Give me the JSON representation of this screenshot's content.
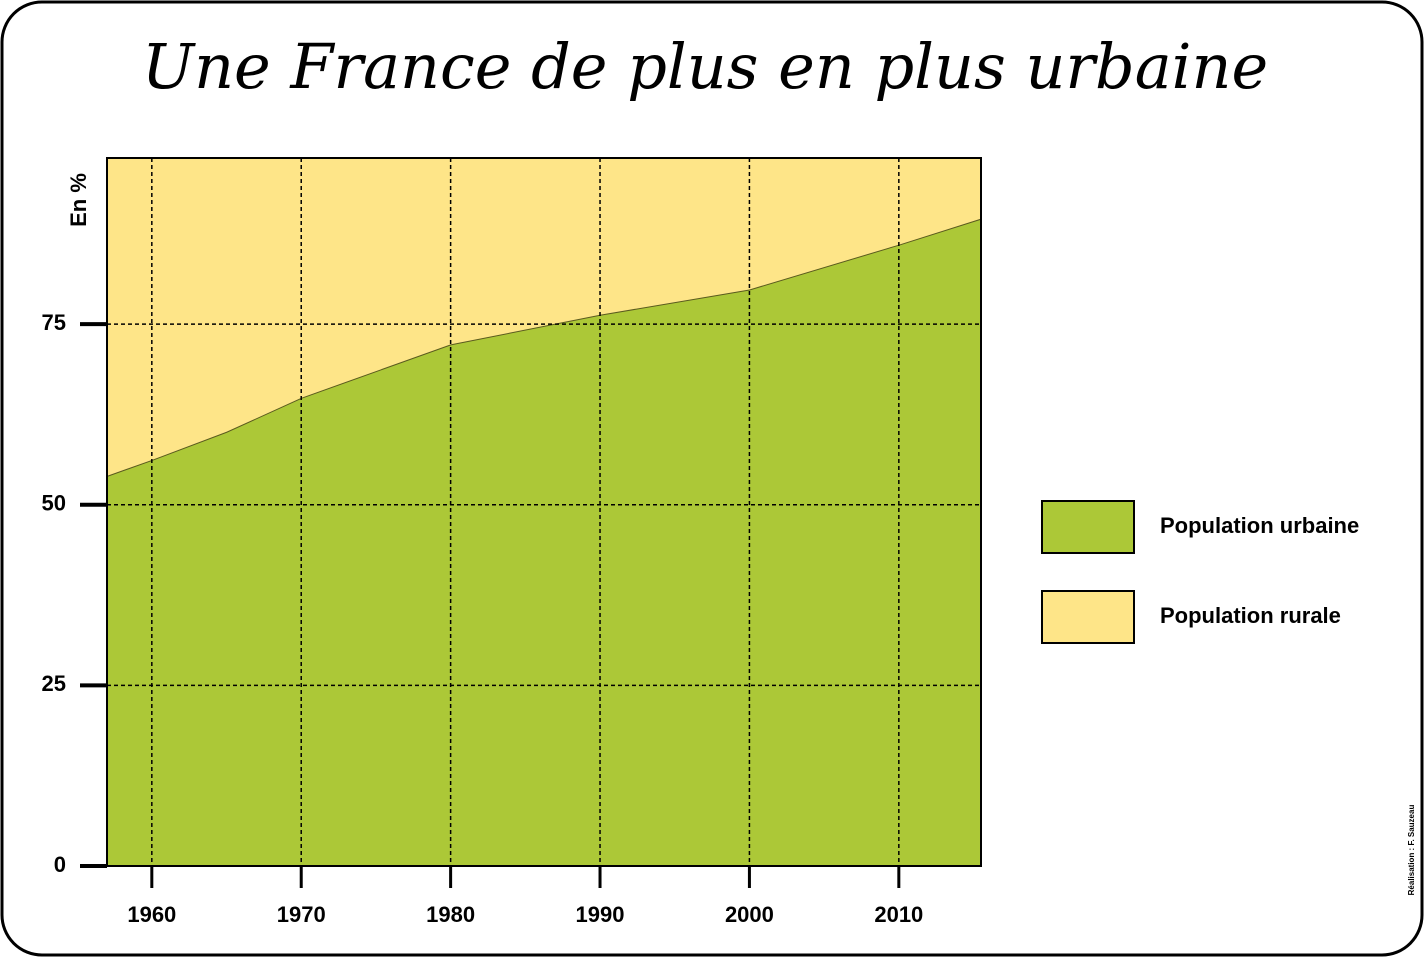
{
  "chart_data": {
    "type": "stacked-area",
    "title": "Une France de plus en plus urbaine",
    "y_label": "En %",
    "credit": "Réalisation : F. Sauzeau",
    "x": [
      1957,
      1960,
      1965,
      1970,
      1980,
      1990,
      2000,
      2010,
      2015.5
    ],
    "series": [
      {
        "name": "Population urbaine",
        "color": "#acc837",
        "values": [
          54,
          56.2,
          60.1,
          64.8,
          72.2,
          76.3,
          79.8,
          86,
          89.6
        ]
      },
      {
        "name": "Population rurale",
        "color": "#fee588",
        "values": [
          46,
          43.8,
          39.9,
          35.2,
          27.8,
          23.7,
          20.2,
          14,
          10.4
        ]
      }
    ],
    "xlim": [
      1957,
      2015.5
    ],
    "xticks": [
      1960,
      1970,
      1980,
      1990,
      2000,
      2010
    ],
    "ylim": [
      0,
      98
    ],
    "yticks": [
      0,
      25,
      50,
      75
    ],
    "grid": true,
    "legend": "right"
  }
}
